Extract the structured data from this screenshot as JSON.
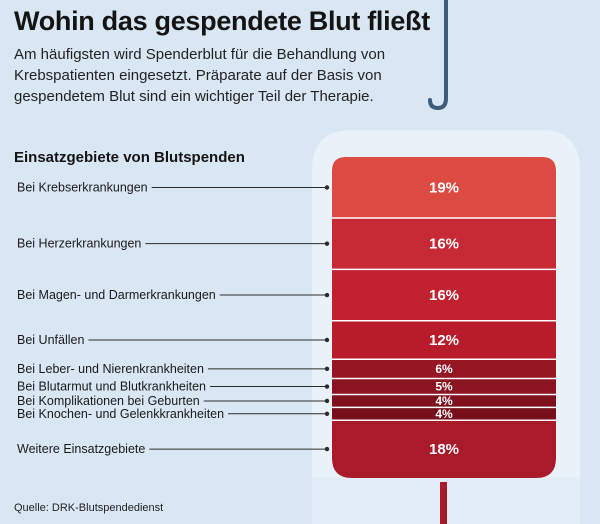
{
  "header": {
    "title": "Wohin das gespendete Blut fließt",
    "subtitle": "Am häufigsten wird Spenderblut für die Behandlung von Krebspatienten eingesetzt. Präparate auf der Basis von gespendetem Blut sind ein wichtiger Teil der Therapie."
  },
  "chart_title": "Einsatzgebiete von Blutspenden",
  "source": "Quelle: DRK-Blutspendedienst",
  "colors": {
    "background": "#d9e7f4",
    "bag": "#e9f1f9",
    "hook": "#3d5d7c"
  },
  "chart_data": {
    "type": "bar",
    "orientation": "stacked-vertical",
    "title": "Einsatzgebiete von Blutspenden",
    "unit": "%",
    "categories": [
      "Bei Krebserkrankungen",
      "Bei Herzerkrankungen",
      "Bei Magen- und Darmerkrankungen",
      "Bei Unfällen",
      "Bei Leber- und Nierenkrankheiten",
      "Bei Blutarmut und Blutkrankheiten",
      "Bei Komplikationen bei Geburten",
      "Bei Knochen- und Gelenkkrankheiten",
      "Weitere Einsatzgebiete"
    ],
    "values": [
      19,
      16,
      16,
      12,
      6,
      5,
      4,
      4,
      18
    ],
    "value_labels": [
      "19%",
      "16%",
      "16%",
      "12%",
      "6%",
      "5%",
      "4%",
      "4%",
      "18%"
    ],
    "colors": [
      "#dc4a41",
      "#c72a35",
      "#c2222f",
      "#b81b2a",
      "#961623",
      "#8a1320",
      "#7f111d",
      "#77101b",
      "#a91a2a"
    ]
  }
}
